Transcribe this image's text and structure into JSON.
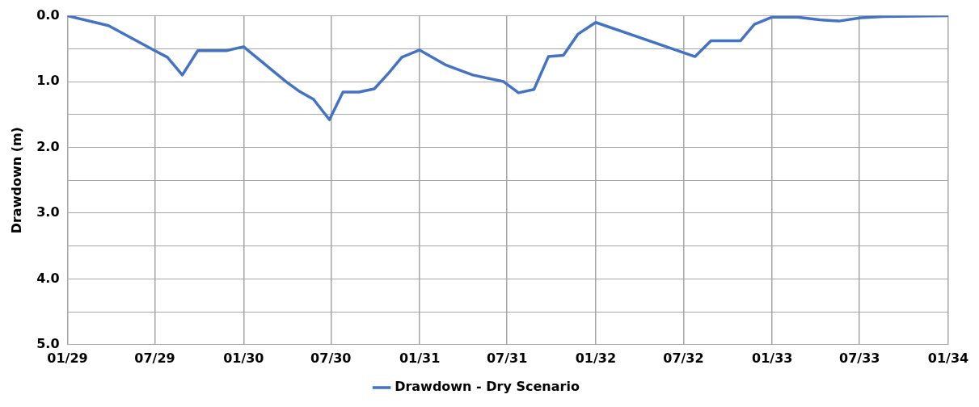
{
  "chart_data": {
    "type": "line",
    "ylabel": "Drawdown (m)",
    "x": [
      "2029-01-01",
      "2029-03-27",
      "2029-07-01",
      "2029-07-27",
      "2029-08-27",
      "2029-09-28",
      "2029-11-26",
      "2030-01-01",
      "2030-03-30",
      "2030-04-25",
      "2030-05-26",
      "2030-06-28",
      "2030-07-26",
      "2030-08-28",
      "2030-09-29",
      "2030-10-30",
      "2030-11-25",
      "2031-01-01",
      "2031-02-25",
      "2031-04-21",
      "2031-06-24",
      "2031-07-25",
      "2031-08-26",
      "2031-09-25",
      "2031-10-26",
      "2031-11-25",
      "2032-01-01",
      "2032-07-25",
      "2032-08-27",
      "2032-10-27",
      "2032-11-25",
      "2033-01-01",
      "2033-02-22",
      "2033-04-09",
      "2033-05-19",
      "2033-07-04",
      "2033-08-19",
      "2034-01-01"
    ],
    "series": [
      {
        "name": "Drawdown - Dry Scenario",
        "color": "#4472c4",
        "values": [
          0.0,
          0.15,
          0.53,
          0.63,
          0.9,
          0.53,
          0.53,
          0.47,
          1.0,
          1.14,
          1.27,
          1.58,
          1.16,
          1.16,
          1.11,
          0.86,
          0.63,
          0.52,
          0.75,
          0.9,
          1.0,
          1.17,
          1.12,
          0.62,
          0.6,
          0.28,
          0.1,
          0.62,
          0.38,
          0.38,
          0.13,
          0.02,
          0.02,
          0.06,
          0.08,
          0.03,
          0.01,
          0.0
        ]
      }
    ],
    "xlim": [
      "2029-01-01",
      "2034-01-01"
    ],
    "xticks": [
      {
        "value": "2029-01",
        "label": "01/29"
      },
      {
        "value": "2029-07",
        "label": "07/29"
      },
      {
        "value": "2030-01",
        "label": "01/30"
      },
      {
        "value": "2030-07",
        "label": "07/30"
      },
      {
        "value": "2031-01",
        "label": "01/31"
      },
      {
        "value": "2031-07",
        "label": "07/31"
      },
      {
        "value": "2032-01",
        "label": "01/32"
      },
      {
        "value": "2032-07",
        "label": "07/32"
      },
      {
        "value": "2033-01",
        "label": "01/33"
      },
      {
        "value": "2033-07",
        "label": "07/33"
      },
      {
        "value": "2034-01",
        "label": "01/34"
      }
    ],
    "ylim": [
      5,
      0
    ],
    "yticks": [
      {
        "value": 0,
        "label": "0.0"
      },
      {
        "value": 0.5,
        "label": null
      },
      {
        "value": 1,
        "label": "1.0"
      },
      {
        "value": 1.5,
        "label": null
      },
      {
        "value": 2,
        "label": "2.0"
      },
      {
        "value": 2.5,
        "label": null
      },
      {
        "value": 3,
        "label": "3.0"
      },
      {
        "value": 3.5,
        "label": null
      },
      {
        "value": 4,
        "label": "4.0"
      },
      {
        "value": 4.5,
        "label": null
      },
      {
        "value": 5,
        "label": "5.0"
      }
    ],
    "grid": true,
    "legend": "bottom",
    "marker": "none",
    "line_style": "solid"
  }
}
